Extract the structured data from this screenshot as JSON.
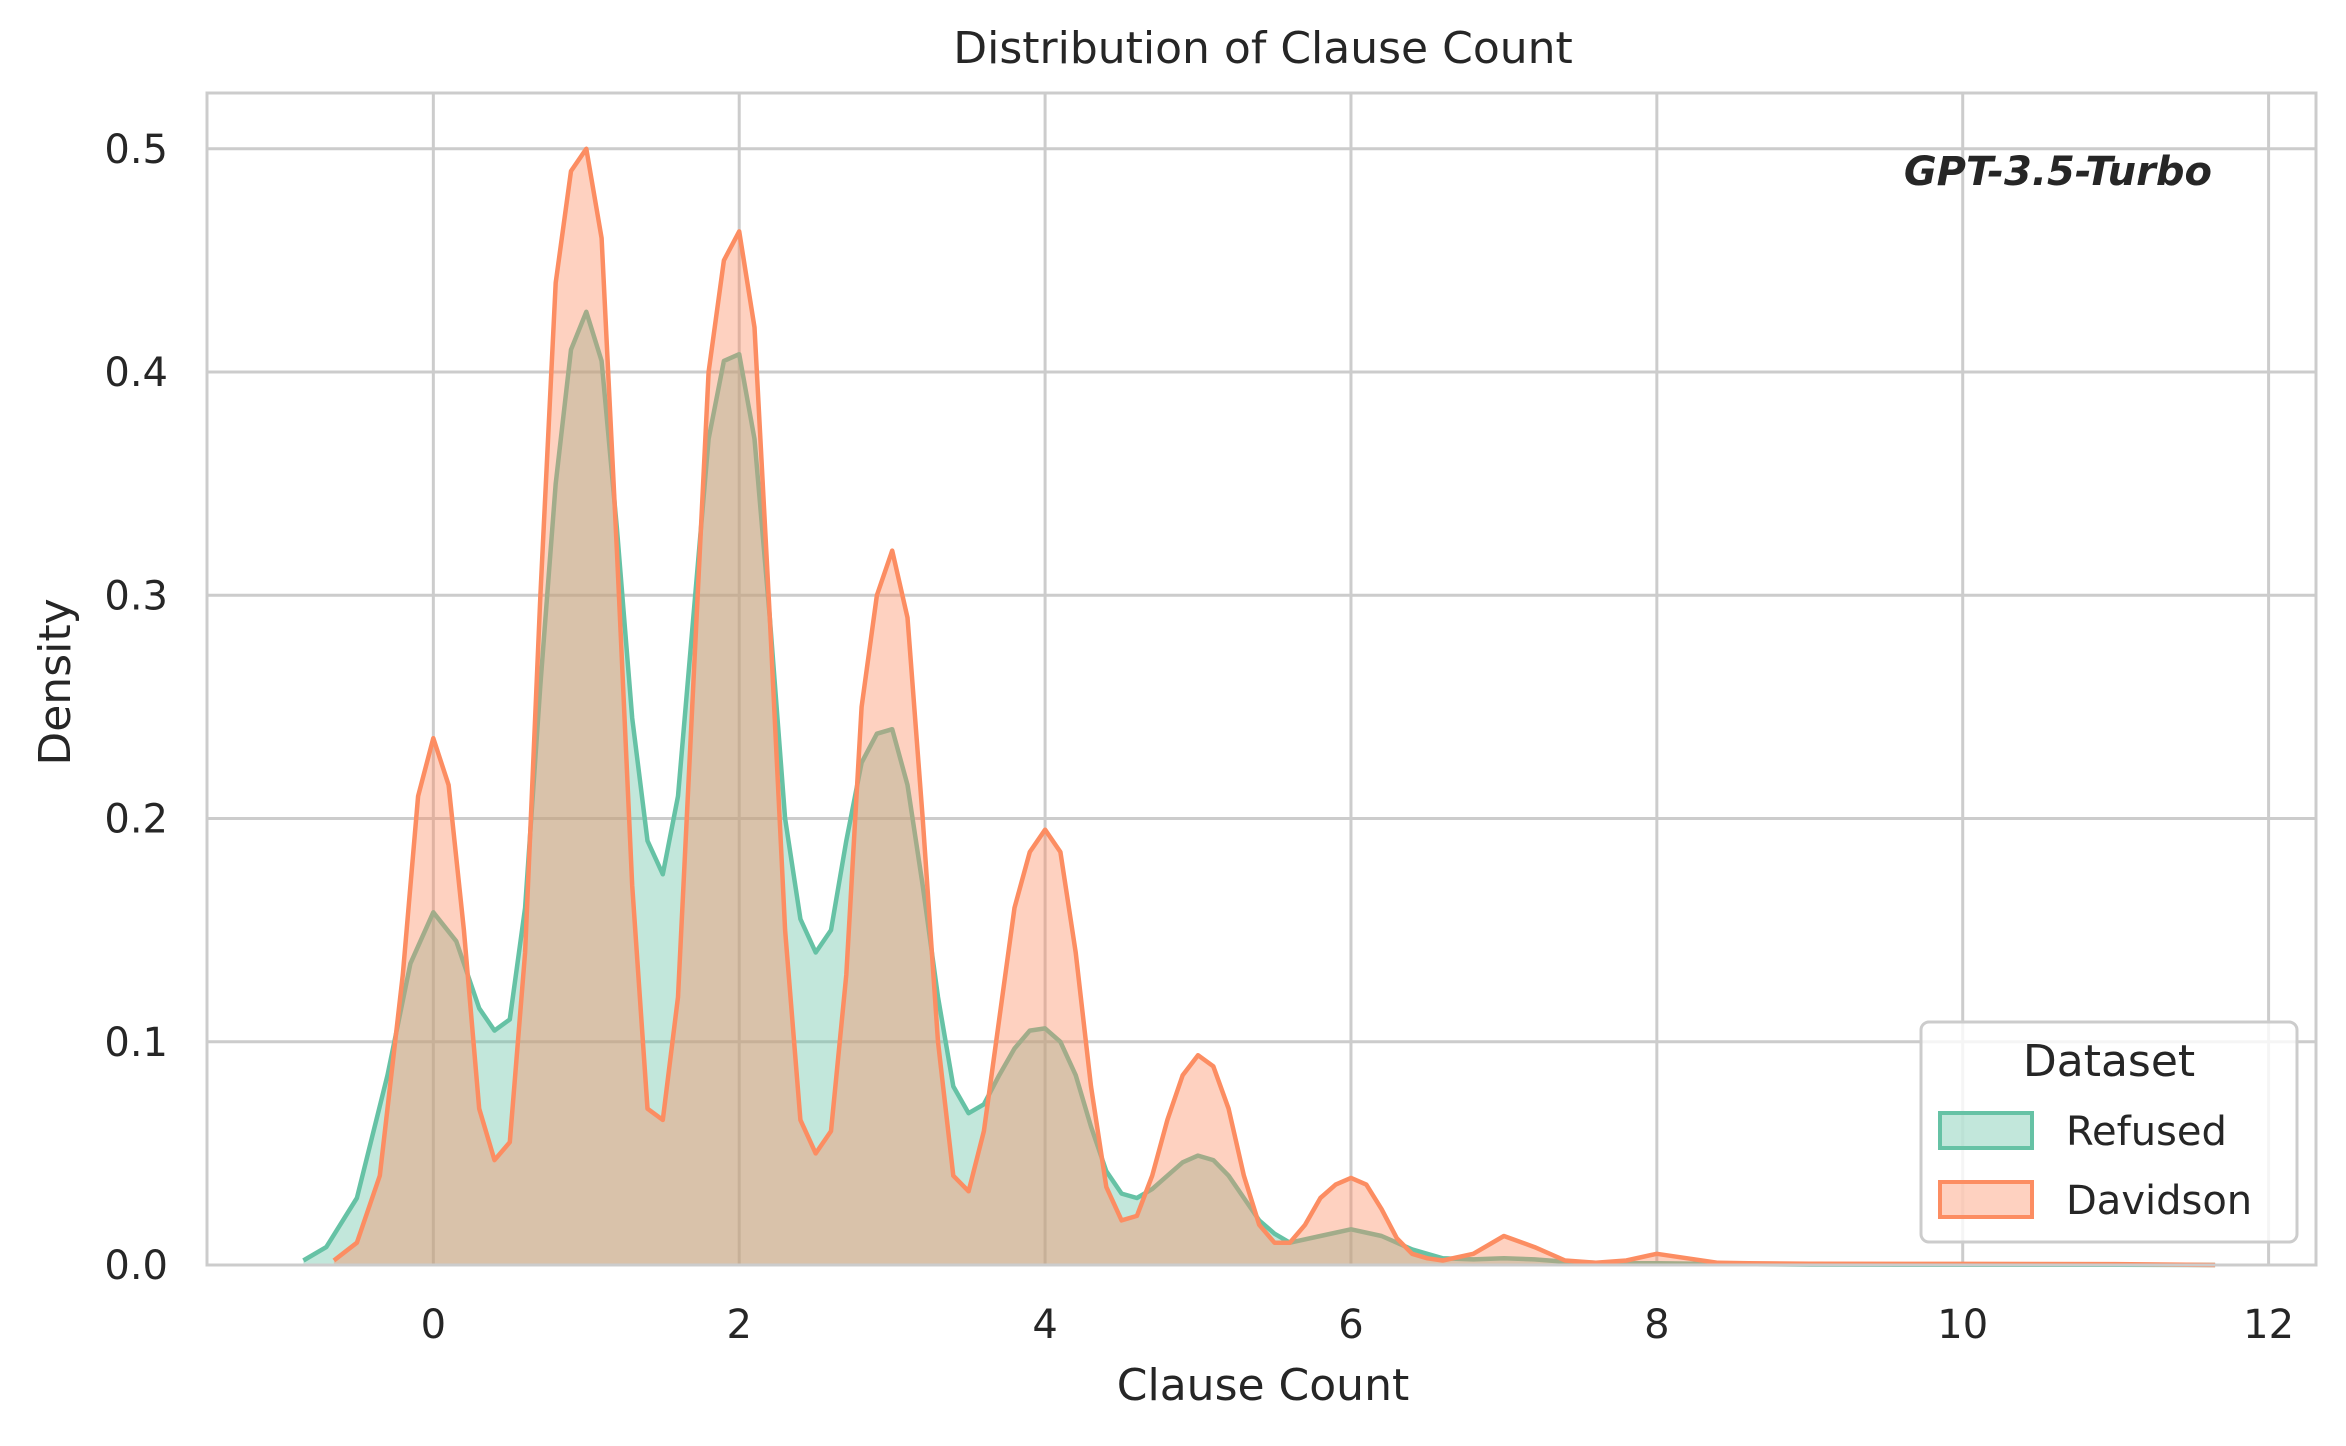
{
  "chart_data": {
    "type": "area",
    "title": "Distribution of Clause Count",
    "xlabel": "Clause Count",
    "ylabel": "Density",
    "annotation": "GPT-3.5-Turbo",
    "xlim": [
      -1.48,
      12.31
    ],
    "ylim": [
      0,
      0.525
    ],
    "xticks": [
      0,
      2,
      4,
      6,
      8,
      10,
      12
    ],
    "yticks": [
      0.0,
      0.1,
      0.2,
      0.3,
      0.4,
      0.5
    ],
    "xtick_labels": [
      "0",
      "2",
      "4",
      "6",
      "8",
      "10",
      "12"
    ],
    "ytick_labels": [
      "0.0",
      "0.1",
      "0.2",
      "0.3",
      "0.4",
      "0.5"
    ],
    "grid": true,
    "legend": {
      "title": "Dataset",
      "position": "lower-right"
    },
    "series": [
      {
        "name": "Refused",
        "color": "#66c2a5",
        "x": [
          -0.85,
          -0.7,
          -0.5,
          -0.3,
          -0.15,
          0.0,
          0.15,
          0.3,
          0.4,
          0.5,
          0.6,
          0.7,
          0.8,
          0.9,
          1.0,
          1.1,
          1.2,
          1.3,
          1.4,
          1.5,
          1.6,
          1.7,
          1.8,
          1.9,
          2.0,
          2.1,
          2.2,
          2.3,
          2.4,
          2.5,
          2.6,
          2.7,
          2.8,
          2.9,
          3.0,
          3.1,
          3.2,
          3.3,
          3.4,
          3.5,
          3.6,
          3.7,
          3.8,
          3.9,
          4.0,
          4.1,
          4.2,
          4.3,
          4.4,
          4.5,
          4.6,
          4.7,
          4.8,
          4.9,
          5.0,
          5.1,
          5.2,
          5.3,
          5.4,
          5.5,
          5.6,
          5.8,
          6.0,
          6.2,
          6.4,
          6.6,
          6.8,
          7.0,
          7.2,
          7.4,
          7.6,
          7.8,
          8.0,
          8.5,
          9.0,
          10.0,
          11.0,
          11.65
        ],
        "values": [
          0.002,
          0.008,
          0.03,
          0.085,
          0.135,
          0.158,
          0.145,
          0.115,
          0.105,
          0.11,
          0.16,
          0.26,
          0.35,
          0.41,
          0.427,
          0.405,
          0.33,
          0.245,
          0.19,
          0.175,
          0.21,
          0.29,
          0.37,
          0.405,
          0.408,
          0.37,
          0.29,
          0.2,
          0.155,
          0.14,
          0.15,
          0.19,
          0.225,
          0.238,
          0.24,
          0.215,
          0.17,
          0.12,
          0.08,
          0.068,
          0.072,
          0.085,
          0.097,
          0.105,
          0.106,
          0.1,
          0.085,
          0.062,
          0.042,
          0.032,
          0.03,
          0.034,
          0.04,
          0.046,
          0.049,
          0.047,
          0.04,
          0.03,
          0.02,
          0.014,
          0.01,
          0.013,
          0.016,
          0.013,
          0.007,
          0.003,
          0.0025,
          0.003,
          0.0025,
          0.0015,
          0.001,
          0.0008,
          0.0008,
          0.0004,
          0.0002,
          0.0001,
          0.0001,
          0.0
        ]
      },
      {
        "name": "Davidson",
        "color": "#fc8d62",
        "x": [
          -0.65,
          -0.5,
          -0.35,
          -0.2,
          -0.1,
          0.0,
          0.1,
          0.2,
          0.3,
          0.4,
          0.5,
          0.6,
          0.7,
          0.8,
          0.9,
          1.0,
          1.1,
          1.2,
          1.3,
          1.4,
          1.5,
          1.6,
          1.7,
          1.8,
          1.9,
          2.0,
          2.1,
          2.2,
          2.3,
          2.4,
          2.5,
          2.6,
          2.7,
          2.8,
          2.9,
          3.0,
          3.1,
          3.2,
          3.3,
          3.4,
          3.5,
          3.6,
          3.7,
          3.8,
          3.9,
          4.0,
          4.1,
          4.2,
          4.3,
          4.4,
          4.5,
          4.6,
          4.7,
          4.8,
          4.9,
          5.0,
          5.1,
          5.2,
          5.3,
          5.4,
          5.5,
          5.6,
          5.7,
          5.8,
          5.9,
          6.0,
          6.1,
          6.2,
          6.3,
          6.4,
          6.5,
          6.6,
          6.8,
          7.0,
          7.2,
          7.4,
          7.6,
          7.8,
          8.0,
          8.2,
          8.4,
          8.6,
          9.0,
          10.0,
          11.0,
          11.65
        ],
        "values": [
          0.002,
          0.01,
          0.04,
          0.13,
          0.21,
          0.236,
          0.215,
          0.15,
          0.07,
          0.047,
          0.055,
          0.14,
          0.3,
          0.44,
          0.49,
          0.5,
          0.46,
          0.32,
          0.17,
          0.07,
          0.065,
          0.12,
          0.26,
          0.4,
          0.45,
          0.463,
          0.42,
          0.29,
          0.15,
          0.065,
          0.05,
          0.06,
          0.13,
          0.25,
          0.3,
          0.32,
          0.29,
          0.2,
          0.1,
          0.04,
          0.033,
          0.06,
          0.11,
          0.16,
          0.185,
          0.195,
          0.185,
          0.14,
          0.08,
          0.035,
          0.02,
          0.022,
          0.04,
          0.065,
          0.085,
          0.094,
          0.089,
          0.07,
          0.04,
          0.018,
          0.01,
          0.01,
          0.018,
          0.03,
          0.036,
          0.039,
          0.036,
          0.025,
          0.012,
          0.005,
          0.003,
          0.002,
          0.005,
          0.013,
          0.008,
          0.002,
          0.001,
          0.002,
          0.005,
          0.003,
          0.001,
          0.0008,
          0.0006,
          0.0005,
          0.0004,
          0.0
        ]
      }
    ]
  }
}
